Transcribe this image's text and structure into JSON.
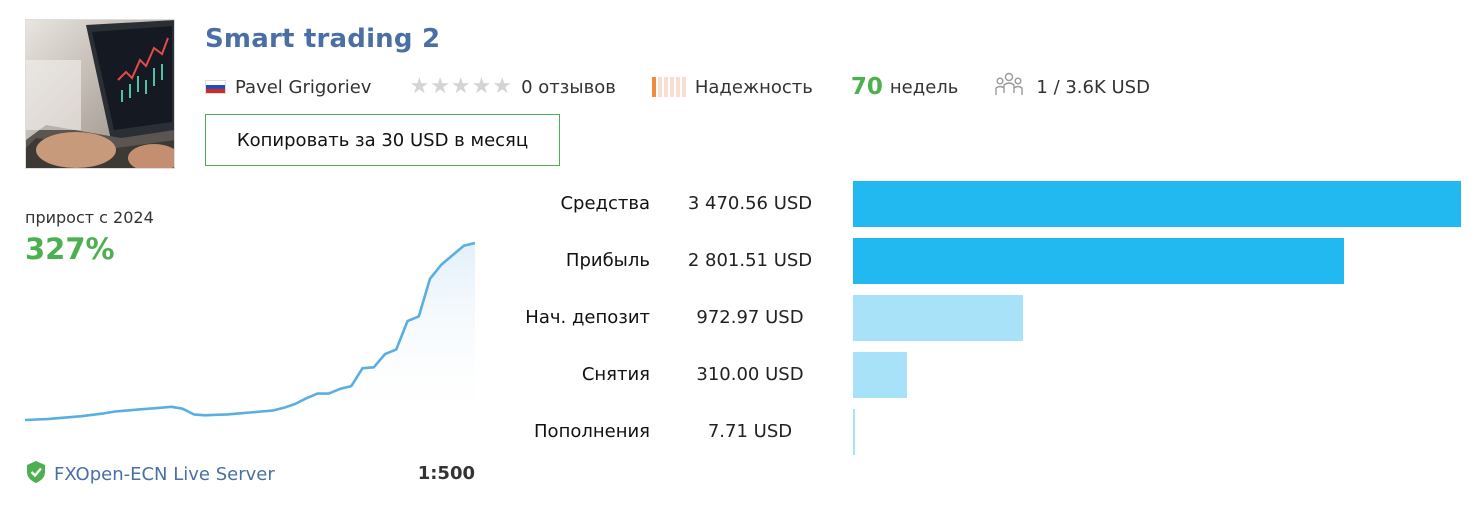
{
  "header": {
    "title": "Smart trading 2",
    "author": "Pavel Grigoriev",
    "rating_stars": 0,
    "reviews": "0 отзывов",
    "reliability_label": "Надежность",
    "weeks_value": "70",
    "weeks_label": "недель",
    "subscribers": "1 / 3.6K USD",
    "copy_button": "Копировать за 30 USD в месяц"
  },
  "growth": {
    "label": "прирост с 2024",
    "value": "327%"
  },
  "footer": {
    "server": "FXOpen-ECN Live Server",
    "leverage": "1:500"
  },
  "colors": {
    "title": "#4a6fa5",
    "accent_green": "#4caf50",
    "bar_dark": "#22b8f0",
    "bar_light": "#a8e2f8",
    "line": "#5aaee0"
  },
  "stats": [
    {
      "label": "Средства",
      "value": "3 470.56 USD",
      "amount": 3470.56,
      "style": "dark"
    },
    {
      "label": "Прибыль",
      "value": "2 801.51 USD",
      "amount": 2801.51,
      "style": "dark"
    },
    {
      "label": "Нач. депозит",
      "value": "972.97 USD",
      "amount": 972.97,
      "style": "light"
    },
    {
      "label": "Снятия",
      "value": "310.00 USD",
      "amount": 310.0,
      "style": "light"
    },
    {
      "label": "Пополнения",
      "value": "7.71 USD",
      "amount": 7.71,
      "style": "light"
    }
  ],
  "chart_data": {
    "type": "area",
    "values": [
      0,
      0.5,
      1,
      2,
      3,
      4,
      5.5,
      7,
      9,
      10,
      11,
      12,
      13,
      14,
      12,
      6,
      5,
      5.5,
      6,
      7,
      8,
      9,
      10,
      13,
      17,
      23,
      28,
      28,
      33,
      36,
      55,
      56,
      70,
      75,
      105,
      110,
      150,
      165,
      175,
      185,
      188
    ]
  }
}
